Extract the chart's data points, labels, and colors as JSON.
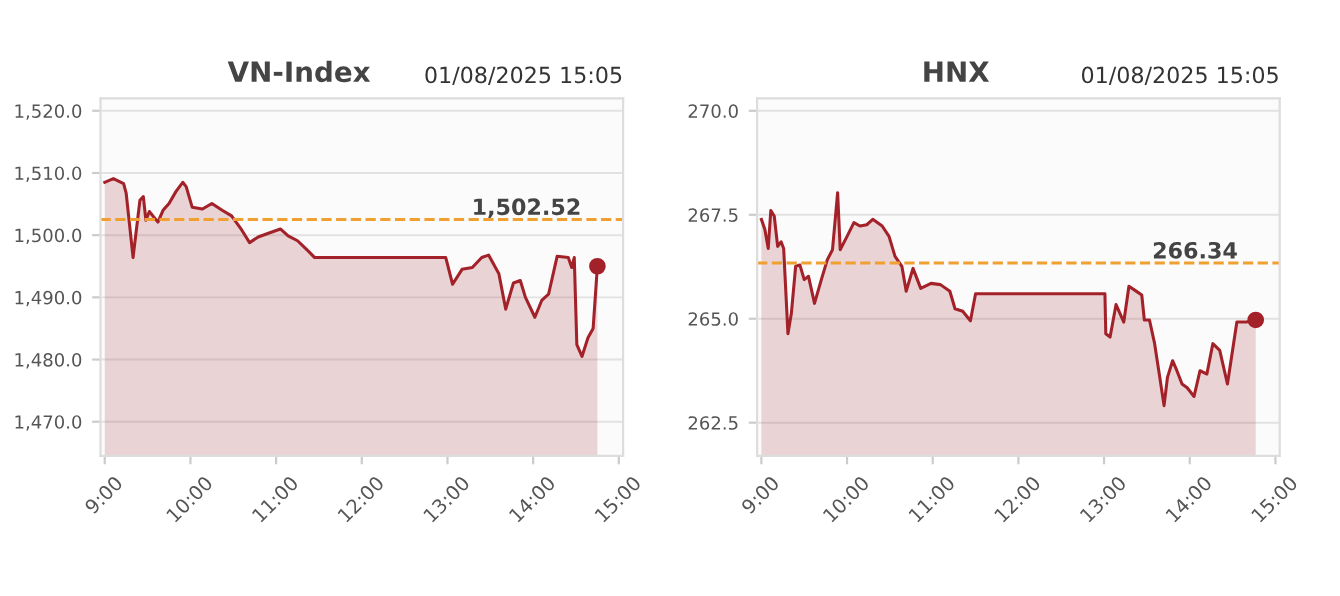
{
  "chart_data": [
    {
      "type": "area",
      "title": "VN-Index",
      "subtitle": "01/08/2025 15:05",
      "grid": "y",
      "legend": false,
      "line_style": "solid",
      "xlim": [
        8.95,
        15.05
      ],
      "xticks": [
        {
          "value": 9,
          "label": "9:00"
        },
        {
          "value": 10,
          "label": "10:00"
        },
        {
          "value": 11,
          "label": "11:00"
        },
        {
          "value": 12,
          "label": "12:00"
        },
        {
          "value": 13,
          "label": "13:00"
        },
        {
          "value": 14,
          "label": "14:00"
        },
        {
          "value": 15,
          "label": "15:00"
        }
      ],
      "ylim": [
        1464.5,
        1522
      ],
      "yticks": [
        {
          "value": 1470,
          "label": "1,470.0"
        },
        {
          "value": 1480,
          "label": "1,480.0"
        },
        {
          "value": 1490,
          "label": "1,490.0"
        },
        {
          "value": 1500,
          "label": "1,500.0"
        },
        {
          "value": 1510,
          "label": "1,510.0"
        },
        {
          "value": 1520,
          "label": "1,520.0"
        }
      ],
      "ref_lines": [
        {
          "axis": "y",
          "value": 1502.52,
          "label": "1,502.52",
          "color": "#f0a030",
          "line_style": "dashed"
        }
      ],
      "x": [
        9.0,
        9.1,
        9.22,
        9.25,
        9.33,
        9.41,
        9.45,
        9.48,
        9.52,
        9.62,
        9.68,
        9.75,
        9.83,
        9.91,
        9.95,
        10.02,
        10.14,
        10.25,
        10.37,
        10.48,
        10.6,
        10.69,
        10.79,
        10.91,
        11.05,
        11.14,
        11.25,
        11.37,
        11.45,
        12.98,
        13.06,
        13.17,
        13.29,
        13.4,
        13.48,
        13.6,
        13.68,
        13.77,
        13.85,
        13.91,
        14.02,
        14.1,
        14.18,
        14.28,
        14.41,
        14.45,
        14.48,
        14.51,
        14.57,
        14.64,
        14.7,
        14.75
      ],
      "series": [
        {
          "color": "#a3222a",
          "values": [
            1508.5,
            1509.1,
            1508.3,
            1506.7,
            1496.4,
            1505.6,
            1506.2,
            1502.4,
            1503.8,
            1502.1,
            1504.0,
            1505.1,
            1507.0,
            1508.5,
            1507.8,
            1504.5,
            1504.2,
            1505.1,
            1504.0,
            1503.1,
            1500.8,
            1498.8,
            1499.7,
            1500.3,
            1501.0,
            1499.9,
            1499.1,
            1497.5,
            1496.4,
            1496.4,
            1492.1,
            1494.5,
            1494.8,
            1496.4,
            1496.8,
            1493.8,
            1488.1,
            1492.3,
            1492.7,
            1490.0,
            1486.8,
            1489.5,
            1490.5,
            1496.6,
            1496.4,
            1494.8,
            1496.4,
            1482.4,
            1480.5,
            1483.5,
            1485.0,
            1495.0
          ]
        }
      ]
    },
    {
      "type": "area",
      "title": "HNX",
      "subtitle": "01/08/2025 15:05",
      "grid": "y",
      "legend": false,
      "line_style": "solid",
      "xlim": [
        8.95,
        15.05
      ],
      "xticks": [
        {
          "value": 9,
          "label": "9:00"
        },
        {
          "value": 10,
          "label": "10:00"
        },
        {
          "value": 11,
          "label": "11:00"
        },
        {
          "value": 12,
          "label": "12:00"
        },
        {
          "value": 13,
          "label": "13:00"
        },
        {
          "value": 14,
          "label": "14:00"
        },
        {
          "value": 15,
          "label": "15:00"
        }
      ],
      "ylim": [
        261.7,
        270.3
      ],
      "yticks": [
        {
          "value": 262.5,
          "label": "262.5"
        },
        {
          "value": 265,
          "label": "265.0"
        },
        {
          "value": 267.5,
          "label": "267.5"
        },
        {
          "value": 270,
          "label": "270.0"
        }
      ],
      "ref_lines": [
        {
          "axis": "y",
          "value": 266.34,
          "label": "266.34",
          "color": "#f0a030",
          "line_style": "dashed"
        }
      ],
      "x": [
        9.0,
        9.04,
        9.08,
        9.11,
        9.15,
        9.19,
        9.23,
        9.26,
        9.31,
        9.35,
        9.4,
        9.45,
        9.5,
        9.55,
        9.62,
        9.7,
        9.77,
        9.83,
        9.89,
        9.92,
        10.0,
        10.08,
        10.15,
        10.23,
        10.3,
        10.41,
        10.49,
        10.56,
        10.64,
        10.69,
        10.77,
        10.86,
        10.98,
        11.09,
        11.2,
        11.26,
        11.35,
        11.44,
        11.5,
        13.01,
        13.02,
        13.07,
        13.14,
        13.23,
        13.29,
        13.37,
        13.44,
        13.47,
        13.53,
        13.59,
        13.65,
        13.7,
        13.74,
        13.8,
        13.85,
        13.91,
        13.97,
        14.05,
        14.12,
        14.2,
        14.27,
        14.35,
        14.44,
        14.5,
        14.55,
        14.66,
        14.77
      ],
      "series": [
        {
          "color": "#a3222a",
          "values": [
            267.39,
            267.15,
            266.69,
            267.6,
            267.47,
            266.74,
            266.85,
            266.69,
            264.64,
            265.13,
            266.26,
            266.29,
            265.94,
            266.02,
            265.37,
            265.94,
            266.42,
            266.66,
            268.03,
            266.66,
            266.98,
            267.31,
            267.23,
            267.26,
            267.39,
            267.23,
            266.98,
            266.5,
            266.26,
            265.66,
            266.21,
            265.73,
            265.85,
            265.82,
            265.66,
            265.24,
            265.18,
            264.95,
            265.6,
            265.6,
            264.64,
            264.56,
            265.34,
            264.92,
            265.78,
            265.67,
            265.57,
            264.97,
            264.97,
            264.4,
            263.59,
            262.91,
            263.59,
            263.99,
            263.75,
            263.43,
            263.34,
            263.13,
            263.75,
            263.67,
            264.4,
            264.24,
            263.43,
            264.24,
            264.92,
            264.92,
            264.97
          ]
        }
      ]
    }
  ]
}
